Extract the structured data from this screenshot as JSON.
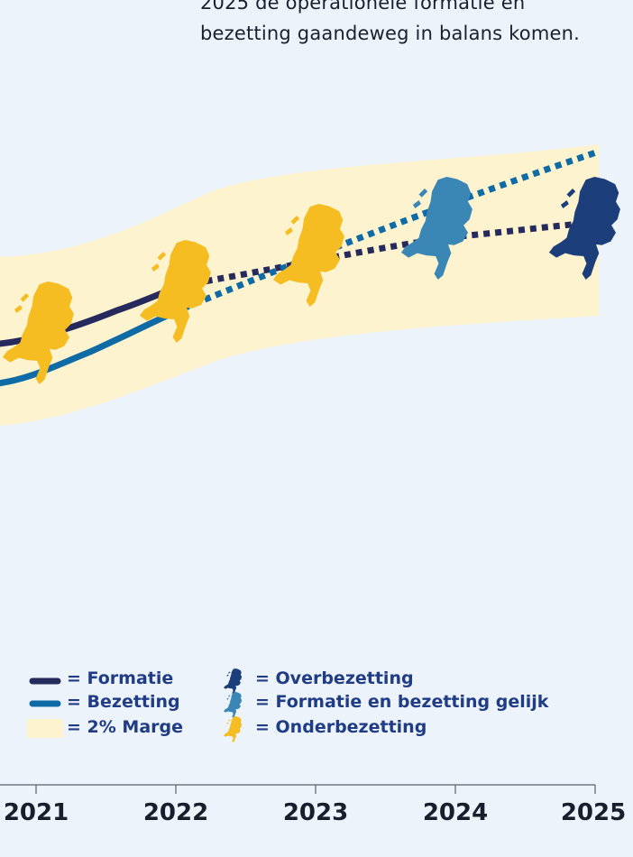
{
  "intro_text": {
    "line1": "2025 de operationele formatie en",
    "line2": "bezetting gaandeweg in balans komen."
  },
  "colors": {
    "background": "#ecf3fb",
    "formatie": "#272a5c",
    "bezetting": "#0e6ba5",
    "marge": "#fdf3cf",
    "onderbezetting": "#f6bd23",
    "gelijk": "#3a86b5",
    "overbezetting": "#1c3e7a",
    "legend_text": "#1f3c84"
  },
  "chart_data": {
    "type": "line",
    "x_ticks": [
      "2021",
      "2022",
      "2023",
      "2024",
      "2025"
    ],
    "series": [
      {
        "name": "Formatie",
        "color": "#272a5c",
        "style": "solid until 2022, dotted after"
      },
      {
        "name": "Bezetting",
        "color": "#0e6ba5",
        "style": "solid until 2022, dotted after"
      }
    ],
    "band": {
      "name": "2% Marge",
      "color": "#fdf3cf"
    },
    "markers": [
      {
        "x": "2021",
        "status": "Onderbezetting"
      },
      {
        "x": "2022",
        "status": "Onderbezetting"
      },
      {
        "x": "2023",
        "status": "Onderbezetting"
      },
      {
        "x": "2024",
        "status": "Formatie en bezetting gelijk"
      },
      {
        "x": "2025",
        "status": "Overbezetting"
      }
    ]
  },
  "legend": {
    "formatie": "= Formatie",
    "bezetting": "= Bezetting",
    "marge": "= 2% Marge",
    "overbezetting": "= Overbezetting",
    "gelijk": "= Formatie en bezetting gelijk",
    "onderbezetting": "= Onderbezetting"
  },
  "icons": {
    "map": "netherlands-map-icon"
  }
}
